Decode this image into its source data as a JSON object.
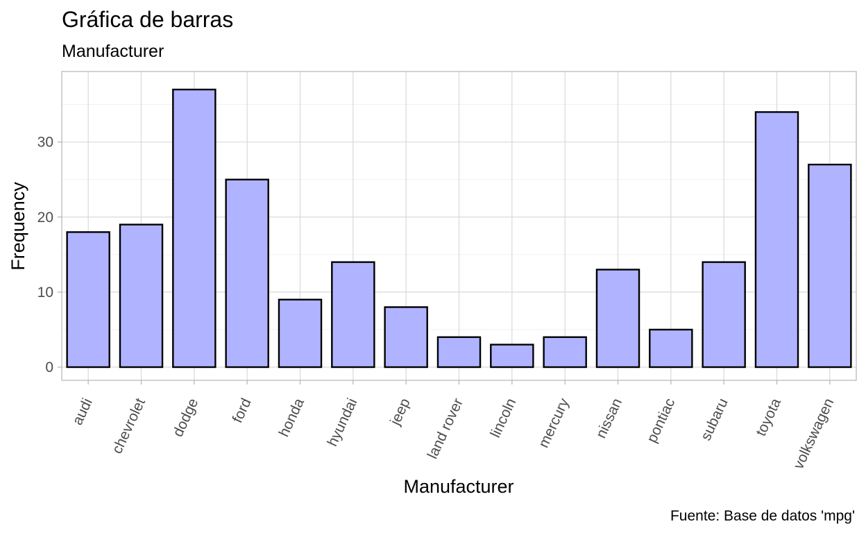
{
  "chart_data": {
    "type": "bar",
    "title": "Gráfica de barras",
    "subtitle": "Manufacturer",
    "xlabel": "Manufacturer",
    "ylabel": "Frequency",
    "caption": "Fuente: Base de datos 'mpg'",
    "categories": [
      "audi",
      "chevrolet",
      "dodge",
      "ford",
      "honda",
      "hyundai",
      "jeep",
      "land rover",
      "lincoln",
      "mercury",
      "nissan",
      "pontiac",
      "subaru",
      "toyota",
      "volkswagen"
    ],
    "values": [
      18,
      19,
      37,
      25,
      9,
      14,
      8,
      4,
      3,
      4,
      13,
      5,
      14,
      34,
      27
    ],
    "ylim": [
      0,
      38.85
    ],
    "yticks": [
      0,
      10,
      20,
      30
    ],
    "grid": true,
    "legend": "none",
    "colors": {
      "bar_fill": "#b0b3ff",
      "bar_stroke": "#000000"
    }
  }
}
